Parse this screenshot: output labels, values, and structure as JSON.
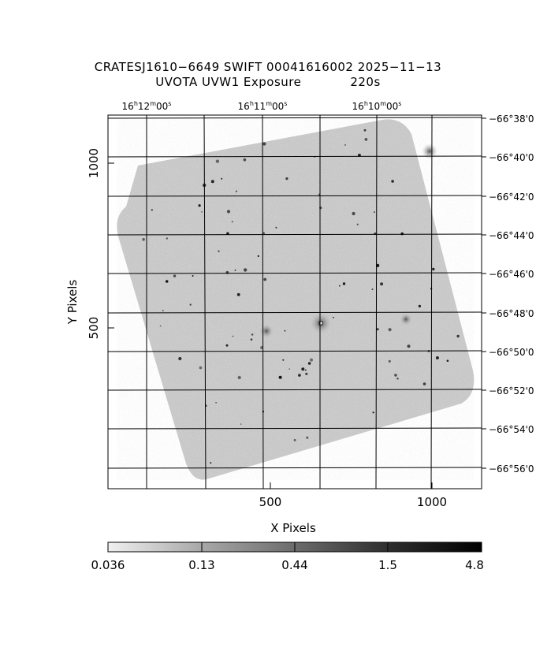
{
  "header": {
    "title_line1": "CRATESJ1610−6649 SWIFT 00041616002 2025−11−13",
    "title_line2_left": "UVOTA UVW1 Exposure",
    "title_line2_right": "220s"
  },
  "axes": {
    "x_label": "X Pixels",
    "y_label": "Y Pixels",
    "x_ticks": [
      "500",
      "1000"
    ],
    "y_ticks": [
      "500",
      "1000"
    ],
    "ra_ticks": [
      {
        "h": "16",
        "m": "12",
        "s": "00"
      },
      {
        "h": "16",
        "m": "11",
        "s": "00"
      },
      {
        "h": "16",
        "m": "10",
        "s": "00"
      }
    ],
    "dec_ticks": [
      "−66°38'0",
      "−66°40'0",
      "−66°42'0",
      "−66°44'0",
      "−66°46'0",
      "−66°48'0",
      "−66°50'0",
      "−66°52'0",
      "−66°54'0",
      "−66°56'0"
    ]
  },
  "colorbar": {
    "labels": [
      "0.036",
      "0.13",
      "0.44",
      "1.5",
      "4.8"
    ],
    "colormap": "grayscale-inverted"
  },
  "colors": {
    "background": "#ffffff",
    "image_base": "#c4c4c4",
    "grid": "#000000"
  }
}
